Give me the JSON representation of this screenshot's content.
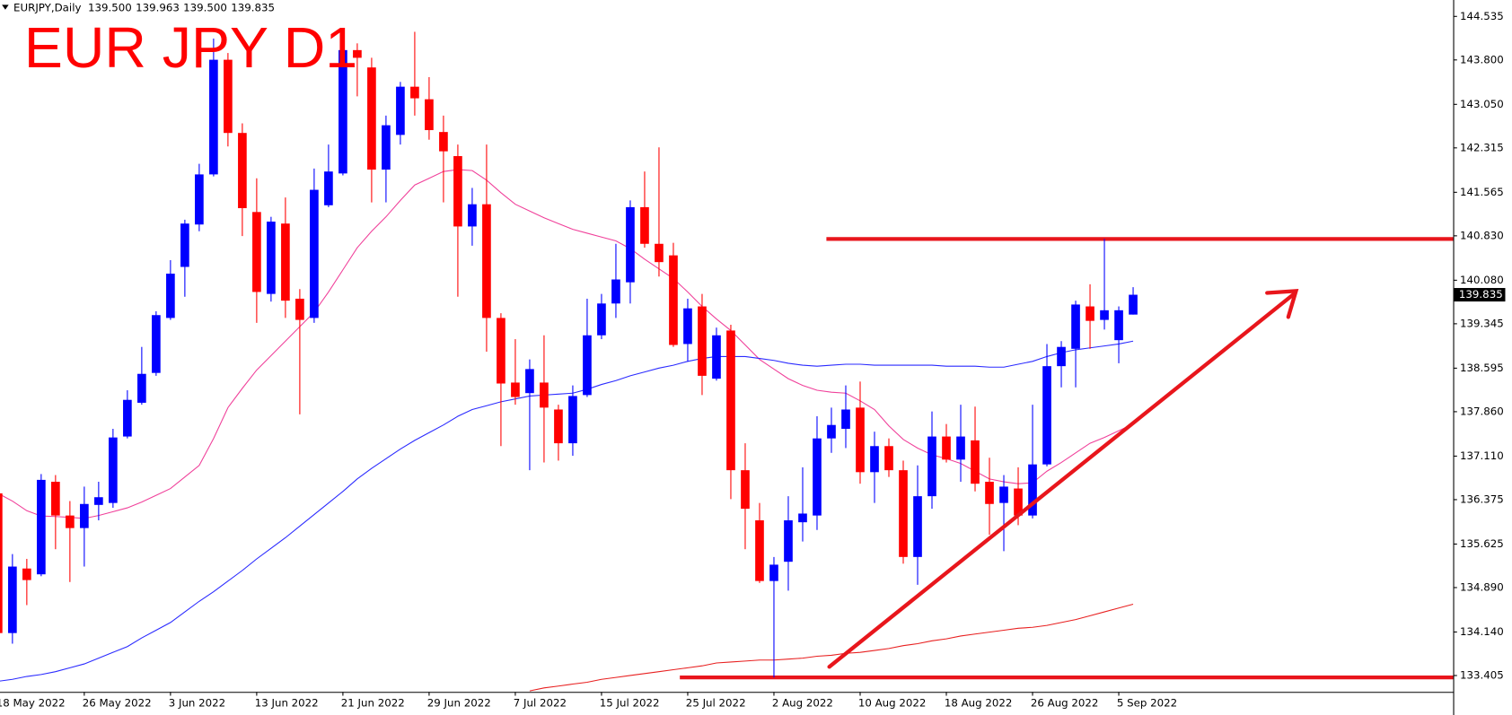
{
  "chart_data": {
    "type": "candlestick",
    "title": "EUR JPY D1",
    "symbol": "EURJPY,Daily",
    "header_values": [
      {
        "value": 139.5,
        "label": "139.500"
      },
      {
        "value": 139.963,
        "label": "139.963"
      },
      {
        "value": 139.5,
        "label": "139.500"
      },
      {
        "value": 139.835,
        "label": "139.835"
      }
    ],
    "up_color": "#0000ff",
    "down_color": "#ff0000",
    "categories": [
      "18 May 2022",
      null,
      null,
      null,
      null,
      null,
      "26 May 2022",
      null,
      null,
      null,
      null,
      null,
      "3 Jun 2022",
      null,
      null,
      null,
      null,
      null,
      "13 Jun 2022",
      null,
      null,
      null,
      null,
      null,
      "21 Jun 2022",
      null,
      null,
      null,
      null,
      null,
      "29 Jun 2022",
      null,
      null,
      null,
      null,
      null,
      "7 Jul 2022",
      null,
      null,
      null,
      null,
      null,
      "15 Jul 2022",
      null,
      null,
      null,
      null,
      null,
      "25 Jul 2022",
      null,
      null,
      null,
      null,
      null,
      "2 Aug 2022",
      null,
      null,
      null,
      null,
      null,
      "10 Aug 2022",
      null,
      null,
      null,
      null,
      null,
      "18 Aug 2022",
      null,
      null,
      null,
      null,
      null,
      "26 Aug 2022",
      null,
      null,
      null,
      null,
      null,
      "5 Sep 2022",
      null
    ],
    "open": [
      136.481,
      134.122,
      135.212,
      135.114,
      136.677,
      136.107,
      135.895,
      136.286,
      136.319,
      137.441,
      138.011,
      138.515,
      139.443,
      140.305,
      141.021,
      141.867,
      143.803,
      142.567,
      141.232,
      139.849,
      141.037,
      139.768,
      139.443,
      141.346,
      141.883,
      143.966,
      143.673,
      141.948,
      142.534,
      143.348,
      143.136,
      142.583,
      142.176,
      140.988,
      141.363,
      139.443,
      138.352,
      138.174,
      138.352,
      137.897,
      137.327,
      138.141,
      139.15,
      139.687,
      140.045,
      141.314,
      140.695,
      140.5,
      139.003,
      139.638,
      138.418,
      139.231,
      136.872,
      136.026,
      135.001,
      135.326,
      135.993,
      136.107,
      137.409,
      137.571,
      137.929,
      136.839,
      137.279,
      136.872,
      135.407,
      136.433,
      137.441,
      137.051,
      137.376,
      136.677,
      136.319,
      136.563,
      136.107,
      136.97,
      138.629,
      138.922,
      139.638,
      139.41,
      139.068,
      139.5
    ],
    "high": [
      136.595,
      135.456,
      135.375,
      136.807,
      136.79,
      136.351,
      136.595,
      136.677,
      137.571,
      138.222,
      138.954,
      139.556,
      140.419,
      141.102,
      142.046,
      144.161,
      143.917,
      142.729,
      141.802,
      141.151,
      141.477,
      139.931,
      141.965,
      142.371,
      144.031,
      144.08,
      143.836,
      142.86,
      143.429,
      144.275,
      143.51,
      142.86,
      142.371,
      141.639,
      142.371,
      139.524,
      139.085,
      138.743,
      139.15,
      137.978,
      138.304,
      139.768,
      139.849,
      140.695,
      141.428,
      141.916,
      142.323,
      140.712,
      139.768,
      139.849,
      139.28,
      139.329,
      137.327,
      136.319,
      135.407,
      136.433,
      136.921,
      137.783,
      137.929,
      138.304,
      138.369,
      137.523,
      137.409,
      137.034,
      136.953,
      137.864,
      137.652,
      137.978,
      137.946,
      137.083,
      136.79,
      136.921,
      137.978,
      139.003,
      139.052,
      139.735,
      140.012,
      140.777,
      139.638,
      139.963
    ],
    "low": [
      134.073,
      133.943,
      134.594,
      135.082,
      135.538,
      134.984,
      135.245,
      136.026,
      136.237,
      137.409,
      137.978,
      138.466,
      139.41,
      139.801,
      140.907,
      141.834,
      142.339,
      140.826,
      139.361,
      139.719,
      139.443,
      137.815,
      139.361,
      141.314,
      141.851,
      143.185,
      141.395,
      141.395,
      142.371,
      142.86,
      142.453,
      141.395,
      139.801,
      140.663,
      138.873,
      137.279,
      137.978,
      136.872,
      137.002,
      137.034,
      137.116,
      138.108,
      139.085,
      139.443,
      139.687,
      140.63,
      140.142,
      138.954,
      138.71,
      138.141,
      138.385,
      136.384,
      135.538,
      134.968,
      133.373,
      134.838,
      135.668,
      135.863,
      137.165,
      137.246,
      136.644,
      136.319,
      136.758,
      135.294,
      134.936,
      136.221,
      137.002,
      136.677,
      136.514,
      135.782,
      135.505,
      135.944,
      136.058,
      136.937,
      138.271,
      138.271,
      138.922,
      139.247,
      138.678,
      139.5
    ],
    "close": [
      134.122,
      135.245,
      135.017,
      136.709,
      136.107,
      135.895,
      136.302,
      136.416,
      137.425,
      138.06,
      138.499,
      139.491,
      140.191,
      141.037,
      141.867,
      143.803,
      142.567,
      141.297,
      139.882,
      141.07,
      139.735,
      139.41,
      141.607,
      141.916,
      143.966,
      143.836,
      141.948,
      142.697,
      143.348,
      143.152,
      142.615,
      142.257,
      140.988,
      141.363,
      139.443,
      138.336,
      138.108,
      138.58,
      137.929,
      137.327,
      138.125,
      139.15,
      139.687,
      140.093,
      141.314,
      140.695,
      140.386,
      138.987,
      139.605,
      138.466,
      139.15,
      136.872,
      136.221,
      135.001,
      135.277,
      136.026,
      136.14,
      137.409,
      137.636,
      137.897,
      136.839,
      137.279,
      136.872,
      135.407,
      136.433,
      137.441,
      137.051,
      137.441,
      136.644,
      136.302,
      136.595,
      136.107,
      136.97,
      138.629,
      138.954,
      139.67,
      139.394,
      139.573,
      139.573,
      139.835
    ],
    "lines": [
      {
        "color": "#f0409a",
        "values": [
          136.481,
          136.351,
          136.188,
          136.099,
          136.091,
          136.075,
          136.058,
          136.107,
          136.172,
          136.237,
          136.335,
          136.449,
          136.563,
          136.758,
          136.953,
          137.409,
          137.929,
          138.255,
          138.564,
          138.808,
          139.052,
          139.296,
          139.54,
          139.882,
          140.256,
          140.63,
          140.907,
          141.151,
          141.428,
          141.688,
          141.802,
          141.916,
          141.948,
          141.932,
          141.769,
          141.558,
          141.363,
          141.249,
          141.135,
          141.037,
          140.94,
          140.874,
          140.809,
          140.744,
          140.614,
          140.435,
          140.272,
          140.11,
          139.882,
          139.638,
          139.426,
          139.231,
          138.987,
          138.743,
          138.58,
          138.418,
          138.304,
          138.222,
          138.19,
          138.174,
          138.043,
          137.897,
          137.62,
          137.392,
          137.246,
          137.132,
          137.067,
          136.986,
          136.856,
          136.725,
          136.677,
          136.644,
          136.66,
          136.856,
          137.002,
          137.165,
          137.327,
          137.425,
          137.539,
          137.653
        ]
      },
      {
        "color": "#2a2aff",
        "values": [
          133.308,
          133.341,
          133.39,
          133.422,
          133.471,
          133.536,
          133.601,
          133.699,
          133.796,
          133.894,
          134.041,
          134.171,
          134.301,
          134.48,
          134.659,
          134.822,
          135.001,
          135.18,
          135.375,
          135.554,
          135.733,
          135.928,
          136.123,
          136.319,
          136.514,
          136.725,
          136.904,
          137.067,
          137.23,
          137.376,
          137.506,
          137.636,
          137.783,
          137.897,
          137.962,
          138.027,
          138.076,
          138.125,
          138.141,
          138.157,
          138.174,
          138.239,
          138.32,
          138.385,
          138.466,
          138.531,
          138.596,
          138.645,
          138.71,
          138.759,
          138.792,
          138.792,
          138.792,
          138.759,
          138.727,
          138.678,
          138.645,
          138.629,
          138.645,
          138.662,
          138.662,
          138.645,
          138.645,
          138.645,
          138.645,
          138.645,
          138.629,
          138.629,
          138.629,
          138.613,
          138.613,
          138.662,
          138.71,
          138.792,
          138.857,
          138.906,
          138.938,
          138.97,
          139.003,
          139.052
        ]
      },
      {
        "color": "#e82020",
        "values": [
          null,
          null,
          null,
          null,
          null,
          null,
          null,
          null,
          null,
          null,
          null,
          null,
          null,
          null,
          null,
          null,
          null,
          null,
          null,
          null,
          null,
          null,
          null,
          null,
          null,
          null,
          null,
          null,
          null,
          null,
          null,
          null,
          null,
          null,
          null,
          null,
          null,
          133.146,
          133.195,
          133.227,
          133.26,
          133.292,
          133.341,
          133.373,
          133.406,
          133.438,
          133.471,
          133.503,
          133.536,
          133.568,
          133.617,
          133.634,
          133.65,
          133.666,
          133.666,
          133.683,
          133.699,
          133.731,
          133.748,
          133.78,
          133.796,
          133.829,
          133.861,
          133.91,
          133.943,
          133.992,
          134.024,
          134.073,
          134.105,
          134.138,
          134.171,
          134.203,
          134.22,
          134.252,
          134.301,
          134.35,
          134.415,
          134.48,
          134.545,
          134.61
        ]
      }
    ],
    "levels": [
      {
        "value": 140.777,
        "color": "#e8161c"
      },
      {
        "value": 133.373,
        "color": "#e8161c"
      }
    ],
    "last_price": {
      "value": 139.835,
      "label": "139.835"
    },
    "ylim": [
      133.129,
      144.812
    ],
    "yticks": [
      144.535,
      {
        "value": 143.8,
        "label": "143.800"
      },
      {
        "value": 143.05,
        "label": "143.050"
      },
      142.315,
      141.565,
      {
        "value": 140.83,
        "label": "140.830"
      },
      {
        "value": 140.08,
        "label": "140.080"
      },
      139.345,
      138.595,
      {
        "value": 137.86,
        "label": "137.860"
      },
      {
        "value": 137.11,
        "label": "137.110"
      },
      136.375,
      135.625,
      {
        "value": 134.89,
        "label": "134.890"
      },
      {
        "value": 134.14,
        "label": "134.140"
      },
      133.405
    ]
  }
}
